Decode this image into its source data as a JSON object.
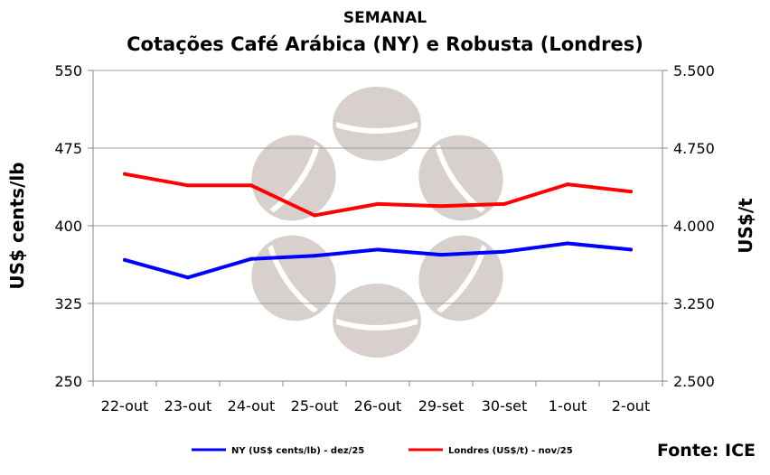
{
  "chart_data": {
    "type": "line",
    "title": "SEMANAL",
    "subtitle": "Cotações Café Arábica (NY) e Robusta (Londres)",
    "categories": [
      "22-out",
      "23-out",
      "24-out",
      "25-out",
      "26-out",
      "29-set",
      "30-set",
      "1-out",
      "2-out"
    ],
    "y_left": {
      "label": "US$ cents/lb",
      "lim": [
        250,
        550
      ],
      "ticks": [
        250,
        325,
        400,
        475,
        550
      ],
      "tick_labels": [
        "250",
        "325",
        "400",
        "475",
        "550"
      ]
    },
    "y_right": {
      "label": "US$/t",
      "lim": [
        2500,
        5500
      ],
      "ticks": [
        2500,
        3250,
        4000,
        4750,
        5500
      ],
      "tick_labels": [
        "2.500",
        "3.250",
        "4.000",
        "4.750",
        "5.500"
      ]
    },
    "grid": true,
    "legend_position": "bottom",
    "series": [
      {
        "name": "NY (US$ cents/lb) - dez/25",
        "axis": "left",
        "color": "#0000ff",
        "values": [
          367,
          350,
          368,
          371,
          377,
          372,
          375,
          383,
          377
        ]
      },
      {
        "name": "Londres (US$/t) - nov/25",
        "axis": "right",
        "color": "#ff0000",
        "values": [
          4500,
          4390,
          4390,
          4100,
          4210,
          4190,
          4210,
          4400,
          4330
        ]
      }
    ],
    "source": "Fonte: ICE"
  }
}
